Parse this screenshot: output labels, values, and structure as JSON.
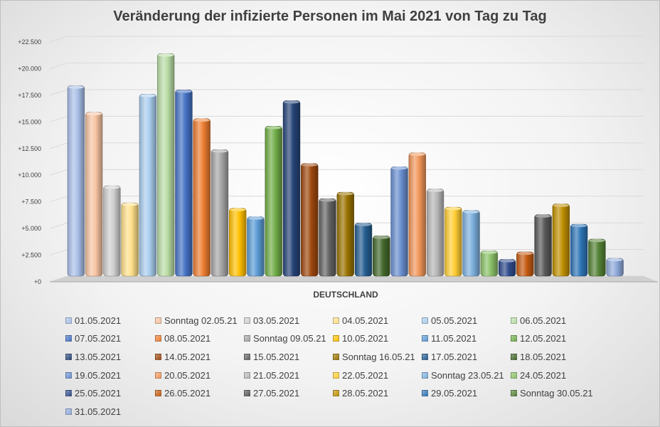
{
  "chart_data": {
    "type": "bar",
    "title": "Veränderung der infizierte Personen im Mai 2021 von Tag zu Tag",
    "categories": [
      "DEUTSCHLAND"
    ],
    "ylim": [
      0,
      22500
    ],
    "yticks": [
      "+0",
      "+2.500",
      "+5.000",
      "+7.500",
      "+10.000",
      "+12.500",
      "+15.000",
      "+17.500",
      "+20.000",
      "+22.500"
    ],
    "ytick_values": [
      0,
      2500,
      5000,
      7500,
      10000,
      12500,
      15000,
      17500,
      20000,
      22500
    ],
    "grid": true,
    "legend_position": "bottom",
    "series": [
      {
        "name": "01.05.2021",
        "value": 18400,
        "color": "#a9c0e8"
      },
      {
        "name": "Sonntag 02.05.21",
        "value": 15900,
        "color": "#f7c3a2"
      },
      {
        "name": "03.05.2021",
        "value": 9000,
        "color": "#cfcfcf"
      },
      {
        "name": "04.05.2021",
        "value": 7400,
        "color": "#ffe08a"
      },
      {
        "name": "05.05.2021",
        "value": 17600,
        "color": "#a9cdee"
      },
      {
        "name": "06.05.2021",
        "value": 21400,
        "color": "#b9dca5"
      },
      {
        "name": "07.05.2021",
        "value": 18000,
        "color": "#4472c4"
      },
      {
        "name": "08.05.2021",
        "value": 15300,
        "color": "#ed7d31"
      },
      {
        "name": "Sonntag 09.05.21",
        "value": 12400,
        "color": "#a5a5a5"
      },
      {
        "name": "10.05.2021",
        "value": 6900,
        "color": "#ffc000"
      },
      {
        "name": "11.05.2021",
        "value": 6100,
        "color": "#5b9bd5"
      },
      {
        "name": "12.05.2021",
        "value": 14600,
        "color": "#70ad47"
      },
      {
        "name": "13.05.2021",
        "value": 17000,
        "color": "#264478"
      },
      {
        "name": "14.05.2021",
        "value": 11100,
        "color": "#9e480e"
      },
      {
        "name": "15.05.2021",
        "value": 7800,
        "color": "#636363"
      },
      {
        "name": "Sonntag 16.05.21",
        "value": 8400,
        "color": "#997300"
      },
      {
        "name": "17.05.2021",
        "value": 5500,
        "color": "#255e91"
      },
      {
        "name": "18.05.2021",
        "value": 4300,
        "color": "#43682b"
      },
      {
        "name": "19.05.2021",
        "value": 10800,
        "color": "#698ed0"
      },
      {
        "name": "20.05.2021",
        "value": 12100,
        "color": "#f1975a"
      },
      {
        "name": "21.05.2021",
        "value": 8700,
        "color": "#b7b7b7"
      },
      {
        "name": "22.05.2021",
        "value": 7000,
        "color": "#ffcd33"
      },
      {
        "name": "Sonntag 23.05.21",
        "value": 6700,
        "color": "#7cafdd"
      },
      {
        "name": "24.05.2021",
        "value": 2900,
        "color": "#8cc168"
      },
      {
        "name": "25.05.2021",
        "value": 2100,
        "color": "#2f4b8c"
      },
      {
        "name": "26.05.2021",
        "value": 2800,
        "color": "#c55a11"
      },
      {
        "name": "27.05.2021",
        "value": 6300,
        "color": "#595959"
      },
      {
        "name": "28.05.2021",
        "value": 7300,
        "color": "#bf8f00"
      },
      {
        "name": "29.05.2021",
        "value": 5400,
        "color": "#2e75b6"
      },
      {
        "name": "Sonntag 30.05.21",
        "value": 4000,
        "color": "#548235"
      },
      {
        "name": "31.05.2021",
        "value": 2200,
        "color": "#8faadc"
      }
    ]
  }
}
